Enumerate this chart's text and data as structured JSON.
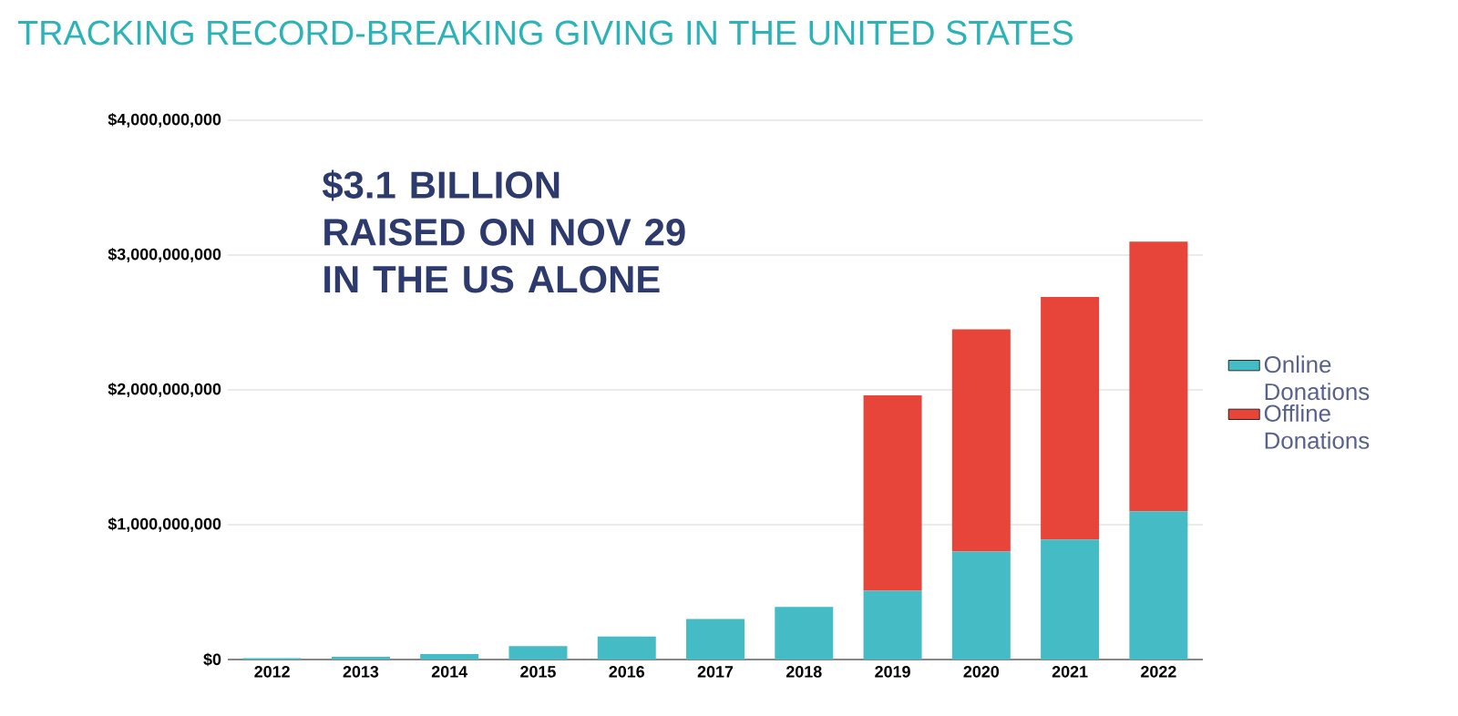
{
  "chart_data": {
    "type": "bar",
    "title": "TRACKING RECORD-BREAKING GIVING IN THE UNITED STATES",
    "annotations": [
      "$3.1 BILLION RAISED ON NOV 29 IN THE US ALONE"
    ],
    "categories": [
      "2012",
      "2013",
      "2014",
      "2015",
      "2016",
      "2017",
      "2018",
      "2019",
      "2020",
      "2021",
      "2022"
    ],
    "stacked": true,
    "series": [
      {
        "name": "Online Donations",
        "color": "#45bcc5",
        "values": [
          10000000,
          20000000,
          40000000,
          100000000,
          170000000,
          300000000,
          390000000,
          510000000,
          800000000,
          890000000,
          1100000000
        ]
      },
      {
        "name": "Offline Donations",
        "color": "#e8453a",
        "values": [
          null,
          null,
          null,
          null,
          null,
          null,
          null,
          1450000000,
          1650000000,
          1800000000,
          2000000000
        ]
      }
    ],
    "ylim": [
      0,
      4000000000
    ],
    "yticks": [
      {
        "value": 0,
        "label": "$0"
      },
      {
        "value": 1000000000,
        "label": "$1,000,000,000"
      },
      {
        "value": 2000000000,
        "label": "$2,000,000,000"
      },
      {
        "value": 3000000000,
        "label": "$3,000,000,000"
      },
      {
        "value": 4000000000,
        "label": "$4,000,000,000"
      }
    ],
    "grid": "y",
    "legend": "right"
  }
}
